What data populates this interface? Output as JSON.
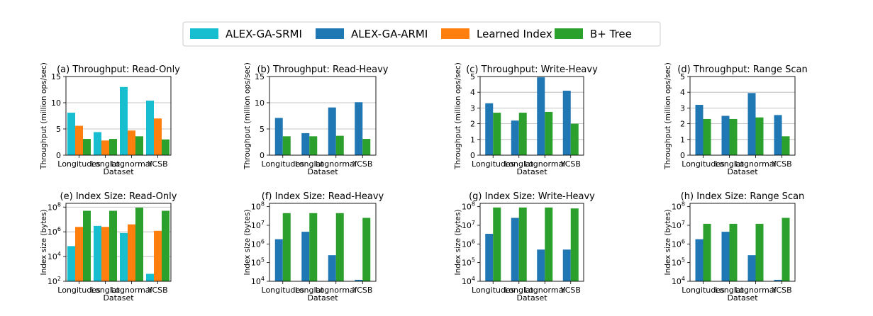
{
  "legend": [
    {
      "name": "ALEX-GA-SRMI",
      "color": "#17becf"
    },
    {
      "name": "ALEX-GA-ARMI",
      "color": "#1f77b4"
    },
    {
      "name": "Learned Index",
      "color": "#ff7f0e"
    },
    {
      "name": "B+ Tree",
      "color": "#2ca02c"
    }
  ],
  "chart_data": [
    {
      "type": "bar",
      "title": "(a) Throughput: Read-Only",
      "xlabel": "Dataset",
      "ylabel": "Throughput (million ops/sec)",
      "categories": [
        "Longitudes",
        "Longlat",
        "Lognormal",
        "YCSB"
      ],
      "ylim": [
        0,
        15
      ],
      "yticks": [
        0,
        5,
        10,
        15
      ],
      "ytick_labels": [
        "0",
        "5",
        "10",
        "15"
      ],
      "scale": "linear",
      "grid": true,
      "series": [
        {
          "name": "ALEX-GA-SRMI",
          "values": [
            8.1,
            4.4,
            13.0,
            10.4
          ]
        },
        {
          "name": "Learned Index",
          "values": [
            5.6,
            2.8,
            4.7,
            7.0
          ]
        },
        {
          "name": "B+ Tree",
          "values": [
            3.1,
            3.1,
            3.6,
            3.0
          ]
        }
      ]
    },
    {
      "type": "bar",
      "title": "(b) Throughput: Read-Heavy",
      "xlabel": "Dataset",
      "ylabel": "Throughput (million ops/sec)",
      "categories": [
        "Longitudes",
        "Longlat",
        "Lognormal",
        "YCSB"
      ],
      "ylim": [
        0,
        15
      ],
      "yticks": [
        0,
        5,
        10,
        15
      ],
      "ytick_labels": [
        "0",
        "5",
        "10",
        "15"
      ],
      "scale": "linear",
      "grid": true,
      "series": [
        {
          "name": "ALEX-GA-ARMI",
          "values": [
            7.1,
            4.2,
            9.1,
            10.1
          ]
        },
        {
          "name": "B+ Tree",
          "values": [
            3.6,
            3.6,
            3.7,
            3.1
          ]
        }
      ]
    },
    {
      "type": "bar",
      "title": "(c) Throughput: Write-Heavy",
      "xlabel": "Dataset",
      "ylabel": "Throughput (million ops/sec)",
      "categories": [
        "Longitudes",
        "Longlat",
        "Lognormal",
        "YCSB"
      ],
      "ylim": [
        0,
        5
      ],
      "yticks": [
        0,
        1,
        2,
        3,
        4,
        5
      ],
      "ytick_labels": [
        "0",
        "1",
        "2",
        "3",
        "4",
        "5"
      ],
      "scale": "linear",
      "grid": true,
      "series": [
        {
          "name": "ALEX-GA-ARMI",
          "values": [
            3.3,
            2.2,
            4.95,
            4.1
          ]
        },
        {
          "name": "B+ Tree",
          "values": [
            2.7,
            2.7,
            2.75,
            2.0
          ]
        }
      ]
    },
    {
      "type": "bar",
      "title": "(d) Throughput: Range Scan",
      "xlabel": "Dataset",
      "ylabel": "Throughput (million ops/sec)",
      "categories": [
        "Longitudes",
        "Longlat",
        "Lognormal",
        "YCSB"
      ],
      "ylim": [
        0,
        5
      ],
      "yticks": [
        0,
        1,
        2,
        3,
        4,
        5
      ],
      "ytick_labels": [
        "0",
        "1",
        "2",
        "3",
        "4",
        "5"
      ],
      "scale": "linear",
      "grid": true,
      "series": [
        {
          "name": "ALEX-GA-ARMI",
          "values": [
            3.2,
            2.5,
            3.95,
            2.55
          ]
        },
        {
          "name": "B+ Tree",
          "values": [
            2.3,
            2.3,
            2.4,
            1.2
          ]
        }
      ]
    },
    {
      "type": "bar",
      "title": "(e) Index Size: Read-Only",
      "xlabel": "Dataset",
      "ylabel": "Index size (bytes)",
      "categories": [
        "Longitudes",
        "Longlat",
        "Lognormal",
        "YCSB"
      ],
      "ylim": [
        100,
        200000000
      ],
      "yticks": [
        100,
        10000,
        1000000,
        100000000
      ],
      "ytick_labels": [
        "10^2",
        "10^4",
        "10^6",
        "10^8"
      ],
      "scale": "log",
      "grid": true,
      "series": [
        {
          "name": "ALEX-GA-SRMI",
          "values": [
            70000,
            3000000,
            800000,
            400
          ]
        },
        {
          "name": "Learned Index",
          "values": [
            2500000,
            2500000,
            4000000,
            1200000
          ]
        },
        {
          "name": "B+ Tree",
          "values": [
            50000000,
            50000000,
            90000000,
            50000000
          ]
        }
      ]
    },
    {
      "type": "bar",
      "title": "(f) Index Size: Read-Heavy",
      "xlabel": "Dataset",
      "ylabel": "Index size (bytes)",
      "categories": [
        "Longitudes",
        "Longlat",
        "Lognormal",
        "YCSB"
      ],
      "ylim": [
        10000,
        150000000
      ],
      "yticks": [
        10000,
        100000,
        1000000,
        10000000,
        100000000
      ],
      "ytick_labels": [
        "10^4",
        "10^5",
        "10^6",
        "10^7",
        "10^8"
      ],
      "scale": "log",
      "grid": false,
      "series": [
        {
          "name": "ALEX-GA-ARMI",
          "values": [
            1800000,
            4500000,
            250000,
            12000
          ]
        },
        {
          "name": "B+ Tree",
          "values": [
            45000000,
            45000000,
            45000000,
            25000000
          ]
        }
      ]
    },
    {
      "type": "bar",
      "title": "(g) Index Size: Write-Heavy",
      "xlabel": "Dataset",
      "ylabel": "Index size (bytes)",
      "categories": [
        "Longitudes",
        "Longlat",
        "Lognormal",
        "YCSB"
      ],
      "ylim": [
        10000,
        150000000
      ],
      "yticks": [
        10000,
        100000,
        1000000,
        10000000,
        100000000
      ],
      "ytick_labels": [
        "10^4",
        "10^5",
        "10^6",
        "10^7",
        "10^8"
      ],
      "scale": "log",
      "grid": false,
      "series": [
        {
          "name": "ALEX-GA-ARMI",
          "values": [
            3500000,
            25000000,
            500000,
            500000
          ]
        },
        {
          "name": "B+ Tree",
          "values": [
            90000000,
            90000000,
            90000000,
            80000000
          ]
        }
      ]
    },
    {
      "type": "bar",
      "title": "(h) Index Size: Range Scan",
      "xlabel": "Dataset",
      "ylabel": "Index size (bytes)",
      "categories": [
        "Longitudes",
        "Longlat",
        "Lognormal",
        "YCSB"
      ],
      "ylim": [
        10000,
        150000000
      ],
      "yticks": [
        10000,
        100000,
        1000000,
        10000000,
        100000000
      ],
      "ytick_labels": [
        "10^4",
        "10^5",
        "10^6",
        "10^7",
        "10^8"
      ],
      "scale": "log",
      "grid": false,
      "series": [
        {
          "name": "ALEX-GA-ARMI",
          "values": [
            1800000,
            4500000,
            250000,
            12000
          ]
        },
        {
          "name": "B+ Tree",
          "values": [
            12000000,
            12000000,
            12000000,
            25000000
          ]
        }
      ]
    }
  ]
}
